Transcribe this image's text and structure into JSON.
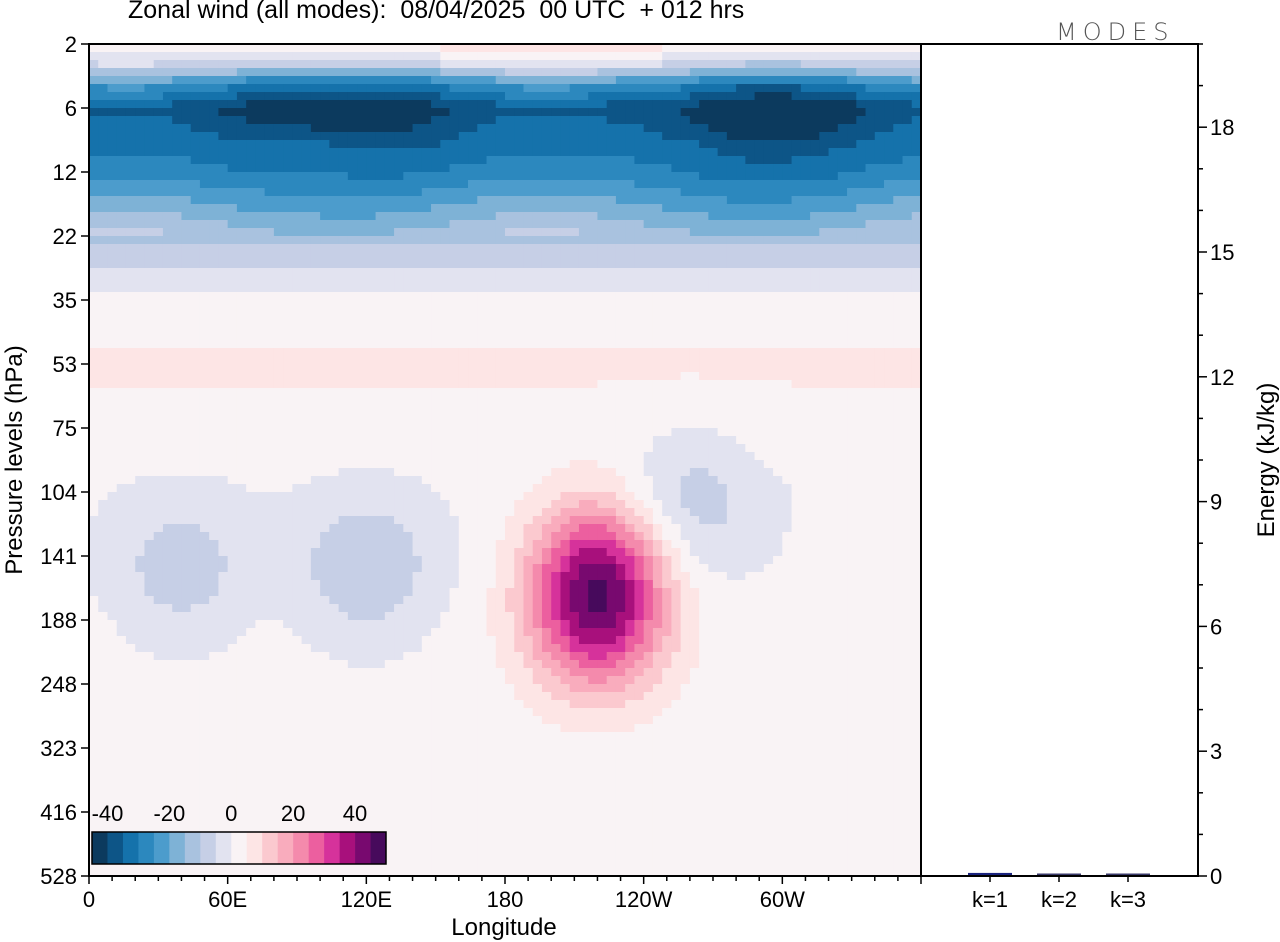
{
  "header": {
    "title": "Zonal wind (all modes):  08/04/2025  00 UTC  + 012 hrs",
    "logo": "MODES"
  },
  "chart_data": [
    {
      "type": "heatmap",
      "title": "Zonal wind (all modes):  08/04/2025  00 UTC  + 012 hrs",
      "xlabel": "Longitude",
      "ylabel": "Pressure levels (hPa)",
      "x_ticks": [
        "0",
        "60E",
        "120E",
        "180",
        "120W",
        "60W"
      ],
      "x_tick_values": [
        0,
        60,
        120,
        180,
        240,
        300
      ],
      "x_range": [
        0,
        360
      ],
      "y_ticks": [
        "2",
        "6",
        "12",
        "22",
        "35",
        "53",
        "75",
        "104",
        "141",
        "188",
        "248",
        "323",
        "416",
        "528"
      ],
      "colorbar": {
        "labels": [
          "-40",
          "-20",
          "0",
          "20",
          "40"
        ],
        "label_values": [
          -40,
          -20,
          0,
          20,
          40
        ],
        "levels": [
          -45,
          -40,
          -35,
          -30,
          -25,
          -20,
          -15,
          -10,
          -5,
          0,
          5,
          10,
          15,
          20,
          25,
          30,
          35,
          40,
          45
        ],
        "colors": [
          "#0c3a5e",
          "#0d5587",
          "#1572ab",
          "#2c88be",
          "#4c9ccc",
          "#7eb2d6",
          "#a9c2df",
          "#c6cfe6",
          "#e2e3f0",
          "#f9f3f5",
          "#fde5e5",
          "#fbc9cf",
          "#f9acbd",
          "#f48aac",
          "#ec5f9f",
          "#d6329b",
          "#a8107c",
          "#78096f",
          "#470a5c"
        ]
      },
      "features": [
        {
          "lon": 30,
          "level": "6",
          "value": -42
        },
        {
          "lon": 100,
          "level": "8",
          "value": -38
        },
        {
          "lon": 255,
          "level": "6",
          "value": -38
        },
        {
          "lon": 345,
          "level": "6",
          "value": -42
        },
        {
          "lon": 220,
          "level": "150",
          "value": 33
        },
        {
          "lon": 220,
          "level": "200",
          "value": 24
        },
        {
          "lon": 40,
          "level": "150",
          "value": -8
        },
        {
          "lon": 120,
          "level": "150",
          "value": -10
        },
        {
          "lon": 260,
          "level": "110",
          "value": -8
        }
      ]
    },
    {
      "type": "bar",
      "ylabel": "Energy (kJ/kg)",
      "categories": [
        "k=1",
        "k=2",
        "k=3"
      ],
      "values": [
        0.05,
        0.02,
        0.02
      ],
      "ylim": [
        0,
        20
      ],
      "y_ticks": [
        "0",
        "3",
        "6",
        "9",
        "12",
        "15",
        "18"
      ],
      "y_tick_values": [
        0,
        3,
        6,
        9,
        12,
        15,
        18
      ],
      "bar_color": "#1a237e"
    }
  ]
}
